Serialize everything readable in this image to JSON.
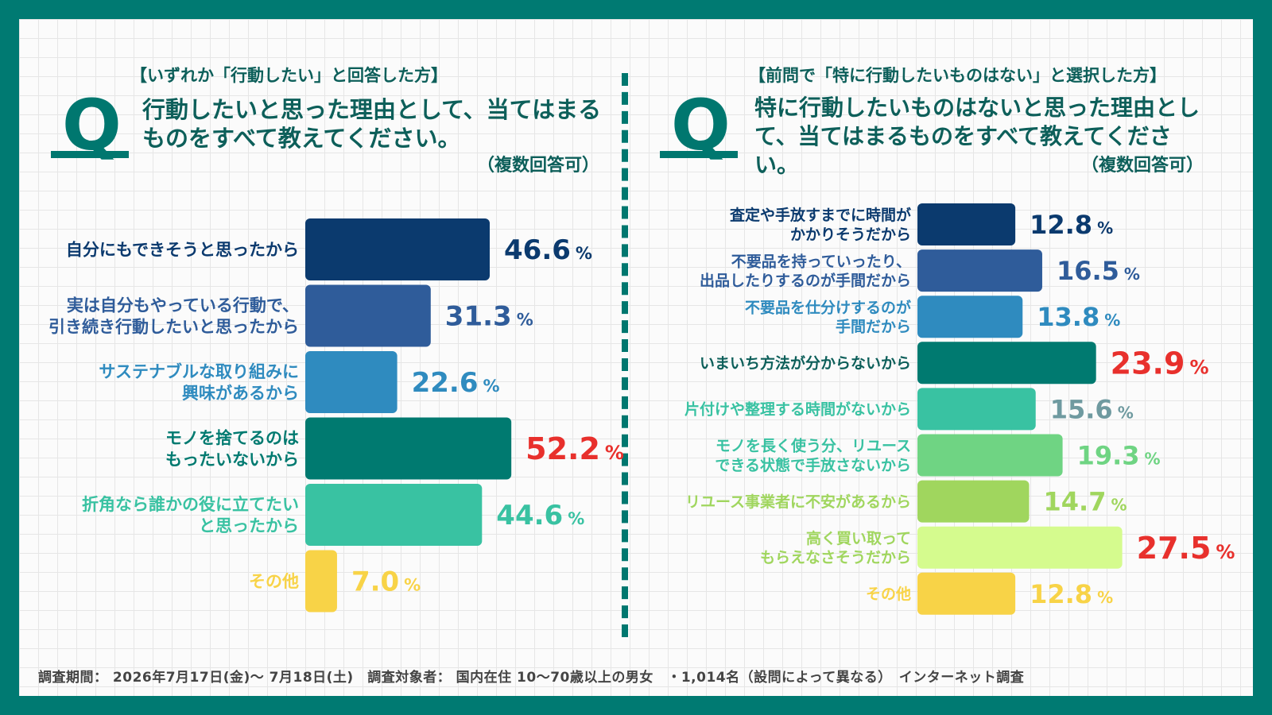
{
  "left": {
    "target": "【いずれか「行動したい」と回答した方】",
    "question": "行動したいと思った理由として、当てはまるものをすべて教えてください。",
    "note": "（複数回答可）"
  },
  "right": {
    "target": "【前問で「特に行動したいものはない」と選択した方】",
    "question": "特に行動したいものはないと思った理由として、当てはまるものをすべて教えてください。",
    "note": "（複数回答可）"
  },
  "q_letter": "Q",
  "unit": "%",
  "footer": "調査期間： 2026年7月17日(金)〜 7月18日(土)　調査対象者： 国内在住 10〜70歳以上の男女　・1,014名（設問によって異なる）　インターネット調査",
  "chart_data": [
    {
      "type": "bar",
      "orientation": "horizontal",
      "categories": [
        "自分にもできそうと思ったから",
        "実は自分もやっている行動で、引き続き行動したいと思ったから",
        "サステナブルな取り組みに興味があるから",
        "モノを捨てるのはもったいないから",
        "折角なら誰かの役に立てたいと思ったから",
        "その他"
      ],
      "label_lines": [
        [
          "自分にもできそうと思ったから"
        ],
        [
          "実は自分もやっている行動で、",
          "引き続き行動したいと思ったから"
        ],
        [
          "サステナブルな取り組みに",
          "興味があるから"
        ],
        [
          "モノを捨てるのは",
          "もったいないから"
        ],
        [
          "折角なら誰かの役に立てたい",
          "と思ったから"
        ],
        [
          "その他"
        ]
      ],
      "values": [
        46.6,
        31.3,
        22.6,
        52.2,
        44.6,
        7.0
      ],
      "value_labels": [
        "46.6",
        "31.3",
        "22.6",
        "52.2",
        "44.6",
        "7.0"
      ],
      "colors": [
        "#0b3a6e",
        "#2f5c9a",
        "#2f8bbf",
        "#007a70",
        "#39c2a2",
        "#f8d347"
      ],
      "value_colors": [
        "#0b3a6e",
        "#2f5c9a",
        "#2f8bbf",
        "#e8302c",
        "#39c2a2",
        "#f8d347"
      ],
      "highlight_index": 3
    },
    {
      "type": "bar",
      "orientation": "horizontal",
      "categories": [
        "査定や手放すまでに時間がかかりそうだから",
        "不要品を持っていったり、出品したりするのが手間だから",
        "不要品を仕分けするのが手間だから",
        "いまいち方法が分からないから",
        "片付けや整理する時間がないから",
        "モノを長く使う分、リユースできる状態で手放さないから",
        "リユース事業者に不安があるから",
        "高く買い取ってもらえなさそうだから",
        "その他"
      ],
      "label_lines": [
        [
          "査定や手放すまでに時間が",
          "かかりそうだから"
        ],
        [
          "不要品を持っていったり、",
          "出品したりするのが手間だから"
        ],
        [
          "不要品を仕分けするのが",
          "手間だから"
        ],
        [
          "いまいち方法が分からないから"
        ],
        [
          "片付けや整理する時間がないから"
        ],
        [
          "モノを長く使う分、リユース",
          "できる状態で手放さないから"
        ],
        [
          "リユース事業者に不安があるから"
        ],
        [
          "高く買い取って",
          "もらえなさそうだから"
        ],
        [
          "その他"
        ]
      ],
      "values": [
        12.8,
        16.5,
        13.8,
        23.9,
        15.6,
        19.3,
        14.7,
        27.5,
        12.8
      ],
      "value_labels": [
        "12.8",
        "16.5",
        "13.8",
        "23.9",
        "15.6",
        "19.3",
        "14.7",
        "27.5",
        "12.8"
      ],
      "colors": [
        "#0b3a6e",
        "#2f5c9a",
        "#2f8bbf",
        "#007a70",
        "#39c2a2",
        "#6fd483",
        "#a0d65e",
        "#d5fb8e",
        "#f8d347"
      ],
      "value_colors": [
        "#0b3a6e",
        "#2f5c9a",
        "#2f8bbf",
        "#e8302c",
        "#6f9aa0",
        "#6fd483",
        "#a0d65e",
        "#e8302c",
        "#f8d347"
      ],
      "label_colors": [
        "#0b3a6e",
        "#2f5c9a",
        "#2f8bbf",
        "#0d5f5a",
        "#39c2a2",
        "#39c2a2",
        "#a0d65e",
        "#a0d65e",
        "#f8d347"
      ],
      "highlight_indices": [
        3,
        7
      ]
    }
  ]
}
